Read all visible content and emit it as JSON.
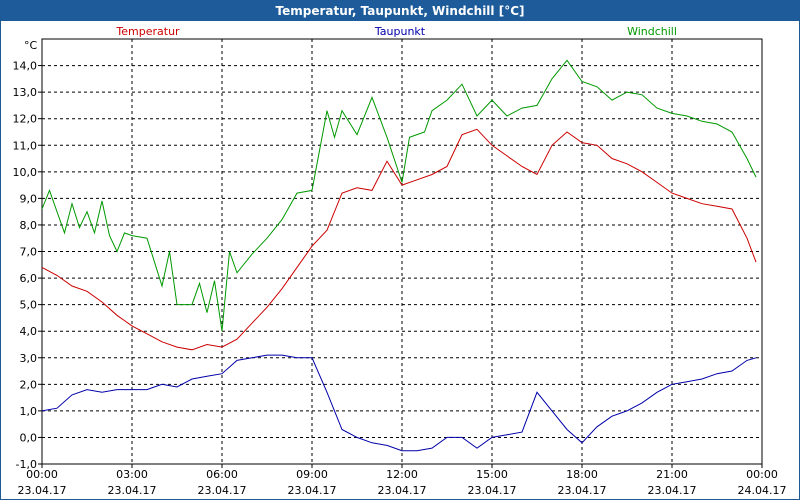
{
  "window": {
    "title": "Temperatur, Taupunkt, Windchill [°C]"
  },
  "chart_data": {
    "type": "line",
    "title": "Temperatur, Taupunkt, Windchill [°C]",
    "ylabel": "°C",
    "xlabel": "",
    "ylim": [
      -1.0,
      15.0
    ],
    "y_ticks": [
      -1.0,
      0.0,
      1.0,
      2.0,
      3.0,
      4.0,
      5.0,
      6.0,
      7.0,
      8.0,
      9.0,
      10.0,
      11.0,
      12.0,
      13.0,
      14.0
    ],
    "y_tick_labels": [
      "-1,0",
      "0,0",
      "1,0",
      "2,0",
      "3,0",
      "4,0",
      "5,0",
      "6,0",
      "7,0",
      "8,0",
      "9,0",
      "10,0",
      "11,0",
      "12,0",
      "13,0",
      "14,0"
    ],
    "xlim_hours": [
      0,
      24
    ],
    "x_ticks": [
      {
        "hours": 0,
        "time": "00:00",
        "date": "23.04.17"
      },
      {
        "hours": 3,
        "time": "03:00",
        "date": "23.04.17"
      },
      {
        "hours": 6,
        "time": "06:00",
        "date": "23.04.17"
      },
      {
        "hours": 9,
        "time": "09:00",
        "date": "23.04.17"
      },
      {
        "hours": 12,
        "time": "12:00",
        "date": "23.04.17"
      },
      {
        "hours": 15,
        "time": "15:00",
        "date": "23.04.17"
      },
      {
        "hours": 18,
        "time": "18:00",
        "date": "23.04.17"
      },
      {
        "hours": 21,
        "time": "21:00",
        "date": "23.04.17"
      },
      {
        "hours": 24,
        "time": "00:00",
        "date": "24.04.17"
      }
    ],
    "grid": true,
    "legend_position": "top",
    "series": [
      {
        "name": "Temperatur",
        "color": "#cc0000",
        "x": [
          0,
          0.5,
          1,
          1.5,
          2,
          2.5,
          3,
          3.5,
          4,
          4.5,
          5,
          5.5,
          6,
          6.5,
          7,
          7.5,
          8,
          8.5,
          9,
          9.5,
          10,
          10.5,
          11,
          11.5,
          12,
          12.5,
          13,
          13.5,
          14,
          14.5,
          15,
          15.5,
          16,
          16.5,
          17,
          17.5,
          18,
          18.5,
          19,
          19.5,
          20,
          20.5,
          21,
          21.5,
          22,
          22.5,
          23,
          23.5,
          23.8
        ],
        "values": [
          6.4,
          6.1,
          5.7,
          5.5,
          5.1,
          4.6,
          4.2,
          3.9,
          3.6,
          3.4,
          3.3,
          3.5,
          3.4,
          3.7,
          4.3,
          4.9,
          5.6,
          6.4,
          7.2,
          7.8,
          9.2,
          9.4,
          9.3,
          10.4,
          9.5,
          9.7,
          9.9,
          10.2,
          11.4,
          11.6,
          11.0,
          10.6,
          10.2,
          9.9,
          11.0,
          11.5,
          11.1,
          11.0,
          10.5,
          10.3,
          10.0,
          9.6,
          9.2,
          9.0,
          8.8,
          8.7,
          8.6,
          7.5,
          6.6
        ]
      },
      {
        "name": "Taupunkt",
        "color": "#0000aa",
        "x": [
          0,
          0.5,
          1,
          1.5,
          2,
          2.5,
          3,
          3.5,
          4,
          4.5,
          5,
          5.5,
          6,
          6.5,
          7,
          7.5,
          8,
          8.5,
          9,
          9.5,
          10,
          10.5,
          11,
          11.5,
          12,
          12.5,
          13,
          13.5,
          14,
          14.5,
          15,
          15.5,
          16,
          16.5,
          17,
          17.5,
          18,
          18.5,
          19,
          19.5,
          20,
          20.5,
          21,
          21.5,
          22,
          22.5,
          23,
          23.5,
          23.8
        ],
        "values": [
          1.0,
          1.1,
          1.6,
          1.8,
          1.7,
          1.8,
          1.8,
          1.8,
          2.0,
          1.9,
          2.2,
          2.3,
          2.4,
          2.9,
          3.0,
          3.1,
          3.1,
          3.0,
          3.0,
          1.7,
          0.3,
          0.0,
          -0.2,
          -0.3,
          -0.5,
          -0.5,
          -0.4,
          0.0,
          0.0,
          -0.4,
          0.0,
          0.1,
          0.2,
          1.7,
          1.0,
          0.3,
          -0.2,
          0.4,
          0.8,
          1.0,
          1.3,
          1.7,
          2.0,
          2.1,
          2.2,
          2.4,
          2.5,
          2.9,
          3.0
        ]
      },
      {
        "name": "Windchill",
        "color": "#009900",
        "x": [
          0,
          0.25,
          0.5,
          0.75,
          1,
          1.25,
          1.5,
          1.75,
          2,
          2.25,
          2.5,
          2.75,
          3,
          3.5,
          4,
          4.25,
          4.5,
          5,
          5.25,
          5.5,
          5.75,
          6,
          6.25,
          6.5,
          7,
          7.5,
          8,
          8.5,
          9,
          9.25,
          9.5,
          9.75,
          10,
          10.5,
          11,
          11.5,
          12,
          12.25,
          12.5,
          12.75,
          13,
          13.5,
          14,
          14.5,
          15,
          15.5,
          16,
          16.5,
          17,
          17.5,
          18,
          18.5,
          19,
          19.5,
          20,
          20.5,
          21,
          21.5,
          22,
          22.5,
          23,
          23.5,
          23.8
        ],
        "values": [
          8.6,
          9.3,
          8.5,
          7.7,
          8.8,
          7.9,
          8.5,
          7.7,
          8.9,
          7.6,
          7.0,
          7.7,
          7.6,
          7.5,
          5.7,
          7.0,
          5.0,
          5.0,
          5.8,
          4.7,
          5.9,
          4.0,
          7.0,
          6.2,
          6.9,
          7.5,
          8.2,
          9.2,
          9.3,
          10.8,
          12.3,
          11.3,
          12.3,
          11.4,
          12.8,
          11.3,
          9.6,
          11.3,
          11.4,
          11.5,
          12.3,
          12.7,
          13.3,
          12.1,
          12.7,
          12.1,
          12.4,
          12.5,
          13.5,
          14.2,
          13.4,
          13.2,
          12.7,
          13.0,
          12.9,
          12.4,
          12.2,
          12.1,
          11.9,
          11.8,
          11.5,
          10.5,
          9.8
        ]
      }
    ]
  }
}
